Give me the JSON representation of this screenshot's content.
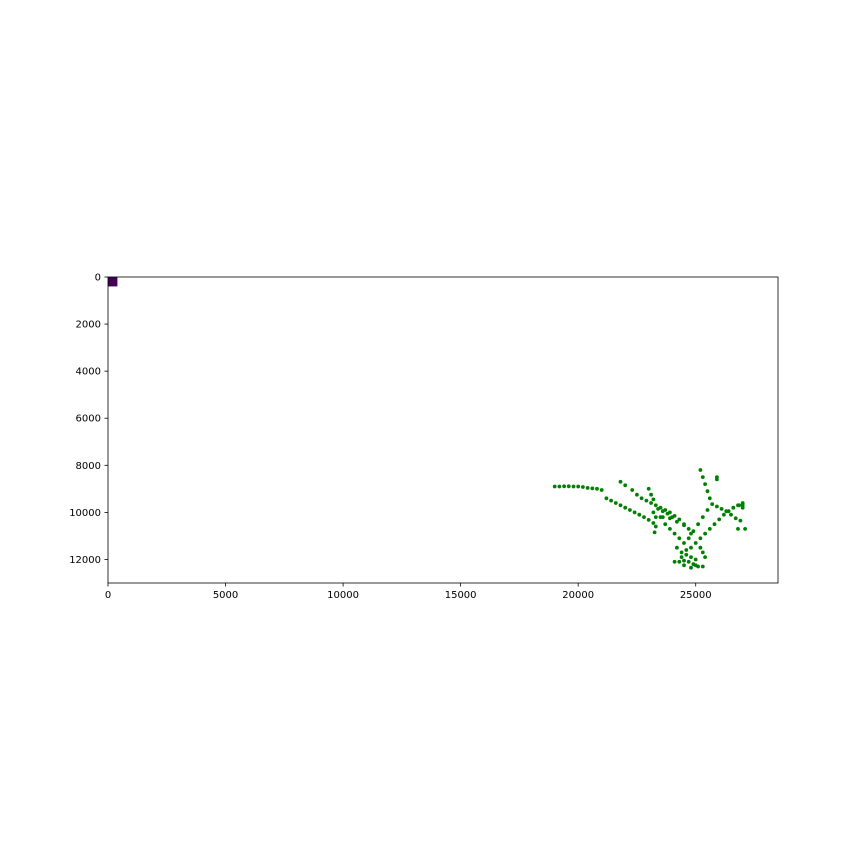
{
  "chart_data": {
    "type": "scatter",
    "title": "",
    "xlabel": "",
    "ylabel": "",
    "xlim": [
      0,
      28500
    ],
    "ylim": [
      13000,
      0
    ],
    "y_inverted": true,
    "grid": false,
    "legend": "none",
    "x_ticks": [
      "0",
      "5000",
      "10000",
      "15000",
      "20000",
      "25000"
    ],
    "y_ticks": [
      "0",
      "2000",
      "4000",
      "6000",
      "8000",
      "10000",
      "12000"
    ],
    "image_block": {
      "x": [
        0,
        400
      ],
      "y": [
        0,
        400
      ],
      "color": "#440154"
    },
    "series": [
      {
        "color": "#008000",
        "points": [
          [
            19000,
            8900
          ],
          [
            19200,
            8900
          ],
          [
            19400,
            8890
          ],
          [
            19600,
            8890
          ],
          [
            19800,
            8900
          ],
          [
            20000,
            8900
          ],
          [
            20200,
            8920
          ],
          [
            20400,
            8960
          ],
          [
            20600,
            8980
          ],
          [
            20800,
            9000
          ],
          [
            21000,
            9050
          ],
          [
            21200,
            9400
          ],
          [
            21400,
            9500
          ],
          [
            21600,
            9600
          ],
          [
            21800,
            9700
          ],
          [
            22000,
            9800
          ],
          [
            22200,
            9900
          ],
          [
            22400,
            10000
          ],
          [
            22600,
            10100
          ],
          [
            22800,
            10200
          ],
          [
            23000,
            10320
          ],
          [
            23200,
            10450
          ],
          [
            23300,
            10600
          ],
          [
            23250,
            10850
          ],
          [
            21800,
            8700
          ],
          [
            22000,
            8850
          ],
          [
            22300,
            9050
          ],
          [
            22500,
            9250
          ],
          [
            22700,
            9400
          ],
          [
            22900,
            9500
          ],
          [
            23100,
            9600
          ],
          [
            23300,
            9700
          ],
          [
            23000,
            9000
          ],
          [
            23100,
            9250
          ],
          [
            23200,
            9450
          ],
          [
            23500,
            9800
          ],
          [
            23700,
            9900
          ],
          [
            23900,
            10000
          ],
          [
            24100,
            10150
          ],
          [
            24300,
            10300
          ],
          [
            24500,
            10500
          ],
          [
            24700,
            10700
          ],
          [
            24800,
            10900
          ],
          [
            23200,
            10000
          ],
          [
            23400,
            9850
          ],
          [
            23600,
            9950
          ],
          [
            23800,
            10050
          ],
          [
            24000,
            10200
          ],
          [
            23300,
            10200
          ],
          [
            23600,
            10200
          ],
          [
            23900,
            10250
          ],
          [
            24200,
            10400
          ],
          [
            24500,
            10550
          ],
          [
            23500,
            10200
          ],
          [
            23700,
            10500
          ],
          [
            23900,
            10700
          ],
          [
            24100,
            10900
          ],
          [
            24300,
            11100
          ],
          [
            24500,
            11300
          ],
          [
            24700,
            11100
          ],
          [
            24900,
            10800
          ],
          [
            25100,
            10500
          ],
          [
            25300,
            10200
          ],
          [
            25500,
            9900
          ],
          [
            25700,
            9650
          ],
          [
            25900,
            9750
          ],
          [
            26100,
            9850
          ],
          [
            26300,
            9950
          ],
          [
            26500,
            10100
          ],
          [
            26700,
            10250
          ],
          [
            26900,
            10350
          ],
          [
            24800,
            11500
          ],
          [
            25000,
            11300
          ],
          [
            25200,
            11100
          ],
          [
            25400,
            10900
          ],
          [
            25600,
            10700
          ],
          [
            25800,
            10500
          ],
          [
            26000,
            10300
          ],
          [
            26200,
            10100
          ],
          [
            26400,
            9950
          ],
          [
            26600,
            9800
          ],
          [
            26800,
            9700
          ],
          [
            27000,
            9600
          ],
          [
            27000,
            9700
          ],
          [
            27000,
            9800
          ],
          [
            26850,
            9700
          ],
          [
            27100,
            10700
          ],
          [
            26800,
            10700
          ],
          [
            25200,
            8200
          ],
          [
            25300,
            8500
          ],
          [
            25400,
            8800
          ],
          [
            25500,
            9100
          ],
          [
            25600,
            9400
          ],
          [
            25900,
            8500
          ],
          [
            25900,
            8600
          ],
          [
            24200,
            11500
          ],
          [
            24400,
            11700
          ],
          [
            24600,
            11800
          ],
          [
            24800,
            11900
          ],
          [
            25000,
            12000
          ],
          [
            24100,
            12100
          ],
          [
            24300,
            12100
          ],
          [
            24500,
            12050
          ],
          [
            24700,
            12100
          ],
          [
            24900,
            12200
          ],
          [
            25100,
            12300
          ],
          [
            25300,
            12300
          ],
          [
            24800,
            12350
          ],
          [
            25000,
            12250
          ],
          [
            24500,
            12250
          ],
          [
            25300,
            11700
          ],
          [
            25400,
            11900
          ],
          [
            24600,
            11600
          ],
          [
            24400,
            11900
          ],
          [
            25200,
            11500
          ]
        ]
      }
    ]
  }
}
